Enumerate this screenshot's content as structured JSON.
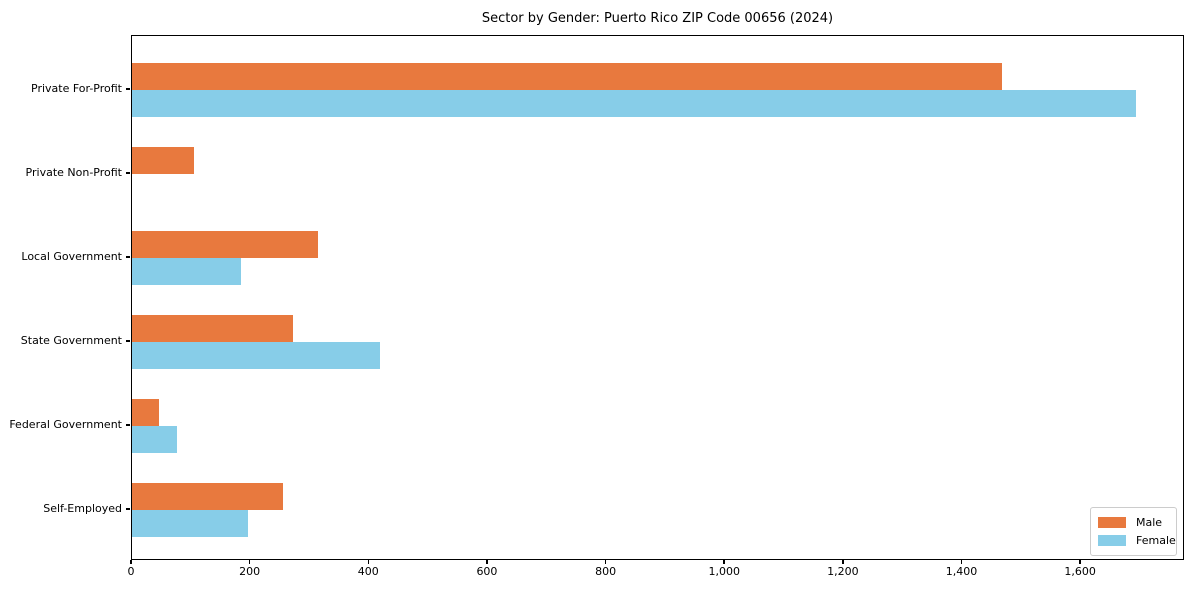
{
  "chart_data": {
    "type": "bar",
    "orientation": "horizontal",
    "title": "Sector by Gender: Puerto Rico ZIP Code 00656 (2024)",
    "categories": [
      "Private For-Profit",
      "Private Non-Profit",
      "Local Government",
      "State Government",
      "Federal Government",
      "Self-Employed"
    ],
    "series": [
      {
        "name": "Male",
        "color": "#E8793E",
        "values": [
          1466,
          104,
          314,
          272,
          46,
          254
        ]
      },
      {
        "name": "Female",
        "color": "#87CDE8",
        "values": [
          1692,
          0,
          184,
          418,
          75,
          195
        ]
      }
    ],
    "xlabel": "",
    "ylabel": "",
    "xlim": [
      0,
      1775
    ],
    "xticks": [
      0,
      200,
      400,
      600,
      800,
      1000,
      1200,
      1400,
      1600
    ],
    "xtick_labels": [
      "0",
      "200",
      "400",
      "600",
      "800",
      "1,000",
      "1,200",
      "1,400",
      "1,600"
    ],
    "grid": false,
    "legend_position": "lower right"
  }
}
